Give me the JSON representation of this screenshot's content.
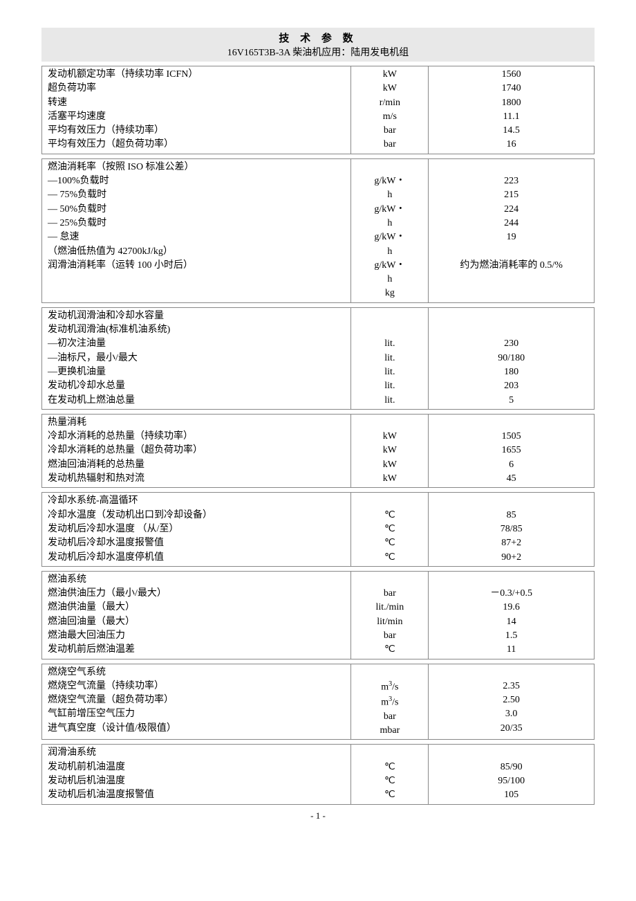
{
  "header": {
    "title": "技 术 参 数",
    "subtitle": "16V165T3B-3A 柴油机应用：陆用发电机组"
  },
  "sections": [
    {
      "rows": [
        {
          "label": "发动机额定功率（持续功率 ICFN）",
          "unit": "kW",
          "value": "1560"
        },
        {
          "label": "超负荷功率",
          "unit": "kW",
          "value": "1740"
        },
        {
          "label": "转速",
          "unit": "r/min",
          "value": "1800"
        },
        {
          "label": "活塞平均速度",
          "unit": "m/s",
          "value": "11.1"
        },
        {
          "label": "平均有效压力（持续功率）",
          "unit": "bar",
          "value": "14.5"
        },
        {
          "label": "平均有效压力（超负荷功率）",
          "unit": "bar",
          "value": "16"
        }
      ]
    },
    {
      "rows": [
        {
          "label": "燃油消耗率（按照 ISO 标准公差）",
          "unit": "",
          "value": ""
        },
        {
          "label": "—100%负载时",
          "unit": "g/kW・h",
          "value": "223"
        },
        {
          "label": "— 75%负载时",
          "unit": "g/kW・h",
          "value": "215"
        },
        {
          "label": "— 50%负载时",
          "unit": "g/kW・h",
          "value": "224"
        },
        {
          "label": "— 25%负载时",
          "unit": "g/kW・h",
          "value": "244"
        },
        {
          "label": "— 怠速",
          "unit": "g/kW・h",
          "value": "19"
        },
        {
          "label": "（燃油低热值为 42700kJ/kg）",
          "unit": "",
          "value": ""
        },
        {
          "label": "润滑油消耗率（运转 100 小时后）",
          "unit": "kg",
          "value": "约为燃油消耗率的 0.5/%"
        }
      ]
    },
    {
      "rows": [
        {
          "label": "发动机润滑油和冷却水容量",
          "unit": "",
          "value": ""
        },
        {
          "label": "发动机润滑油(标准机油系统)",
          "unit": "",
          "value": ""
        },
        {
          "label": "—初次注油量",
          "unit": "lit.",
          "value": "230"
        },
        {
          "label": "—油标尺，最小/最大",
          "unit": "lit.",
          "value": "90/180"
        },
        {
          "label": "—更换机油量",
          "unit": "lit.",
          "value": "180"
        },
        {
          "label": "发动机冷却水总量",
          "unit": "lit.",
          "value": "203"
        },
        {
          "label": "在发动机上燃油总量",
          "unit": "lit.",
          "value": "5"
        }
      ]
    },
    {
      "rows": [
        {
          "label": "热量消耗",
          "unit": "",
          "value": ""
        },
        {
          "label": "冷却水消耗的总热量（持续功率）",
          "unit": "kW",
          "value": "1505"
        },
        {
          "label": "冷却水消耗的总热量（超负荷功率）",
          "unit": "kW",
          "value": "1655"
        },
        {
          "label": "燃油回油消耗的总热量",
          "unit": "kW",
          "value": "6"
        },
        {
          "label": "发动机热辐射和热对流",
          "unit": "kW",
          "value": "45"
        }
      ]
    },
    {
      "rows": [
        {
          "label": "冷却水系统-高温循环",
          "unit": "",
          "value": ""
        },
        {
          "label": "冷却水温度（发动机出口到冷却设备）",
          "unit": "℃",
          "value": "85"
        },
        {
          "label": "发动机后冷却水温度 （从/至）",
          "unit": "℃",
          "value": "78/85"
        },
        {
          "label": "发动机后冷却水温度报警值",
          "unit": "℃",
          "value": "87+2"
        },
        {
          "label": "发动机后冷却水温度停机值",
          "unit": "℃",
          "value": "90+2"
        }
      ]
    },
    {
      "rows": [
        {
          "label": "燃油系统",
          "unit": "",
          "value": ""
        },
        {
          "label": "燃油供油压力（最小/最大）",
          "unit": "bar",
          "value": "－0.3/+0.5"
        },
        {
          "label": "燃油供油量（最大）",
          "unit": "lit./min",
          "value": "19.6"
        },
        {
          "label": "燃油回油量（最大）",
          "unit": "lit/min",
          "value": "14"
        },
        {
          "label": "燃油最大回油压力",
          "unit": "bar",
          "value": "1.5"
        },
        {
          "label": "发动机前后燃油温差",
          "unit": "℃",
          "value": "11"
        }
      ]
    },
    {
      "rows": [
        {
          "label": "燃烧空气系统",
          "unit": "",
          "value": ""
        },
        {
          "label": "燃烧空气流量（持续功率）",
          "unit": "m³/s",
          "value": "2.35"
        },
        {
          "label": "燃烧空气流量（超负荷功率）",
          "unit": "m³/s",
          "value": "2.50"
        },
        {
          "label": "气缸前增压空气压力",
          "unit": "bar",
          "value": "3.0"
        },
        {
          "label": "进气真空度（设计值/极限值）",
          "unit": "mbar",
          "value": "20/35"
        }
      ]
    },
    {
      "rows": [
        {
          "label": "润滑油系统",
          "unit": "",
          "value": ""
        },
        {
          "label": "发动机前机油温度",
          "unit": "℃",
          "value": "85/90"
        },
        {
          "label": "发动机后机油温度",
          "unit": "℃",
          "value": "95/100"
        },
        {
          "label": "发动机后机油温度报警值",
          "unit": "℃",
          "value": "105"
        }
      ]
    }
  ],
  "page_num": "- 1 -"
}
